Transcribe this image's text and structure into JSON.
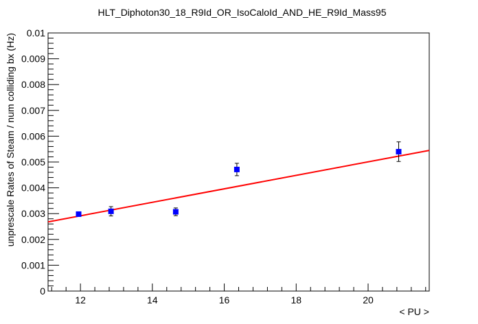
{
  "chart_data": {
    "type": "scatter",
    "title": "HLT_Diphoton30_18_R9Id_OR_IsoCaloId_AND_HE_R9Id_Mass95",
    "xlabel": "< PU >",
    "ylabel": "unprescale Rates of Steam / num colliding bx (Hz)",
    "xlim": [
      11.1,
      21.7
    ],
    "ylim": [
      0,
      0.01
    ],
    "x_ticks": [
      12,
      14,
      16,
      18,
      20
    ],
    "x_tick_labels": [
      "12",
      "14",
      "16",
      "18",
      "20"
    ],
    "y_ticks": [
      0,
      0.001,
      0.002,
      0.003,
      0.004,
      0.005,
      0.006,
      0.007,
      0.008,
      0.009,
      0.01
    ],
    "y_tick_labels": [
      "0",
      "0.001",
      "0.002",
      "0.003",
      "0.004",
      "0.005",
      "0.006",
      "0.007",
      "0.008",
      "0.009",
      "0.01"
    ],
    "grid": false,
    "series": [
      {
        "marker": "square",
        "color": "#0000ff",
        "points": [
          {
            "x": 11.95,
            "y": 0.00298,
            "err": 5e-05
          },
          {
            "x": 12.85,
            "y": 0.00309,
            "err": 0.00018
          },
          {
            "x": 14.65,
            "y": 0.00307,
            "err": 0.00015
          },
          {
            "x": 16.35,
            "y": 0.00471,
            "err": 0.00024
          },
          {
            "x": 20.85,
            "y": 0.0054,
            "err": 0.00038
          }
        ]
      }
    ],
    "fit": {
      "color": "#ff0000",
      "x_range": [
        11.1,
        21.7
      ],
      "y_start": 0.00268,
      "y_end": 0.00545
    }
  }
}
